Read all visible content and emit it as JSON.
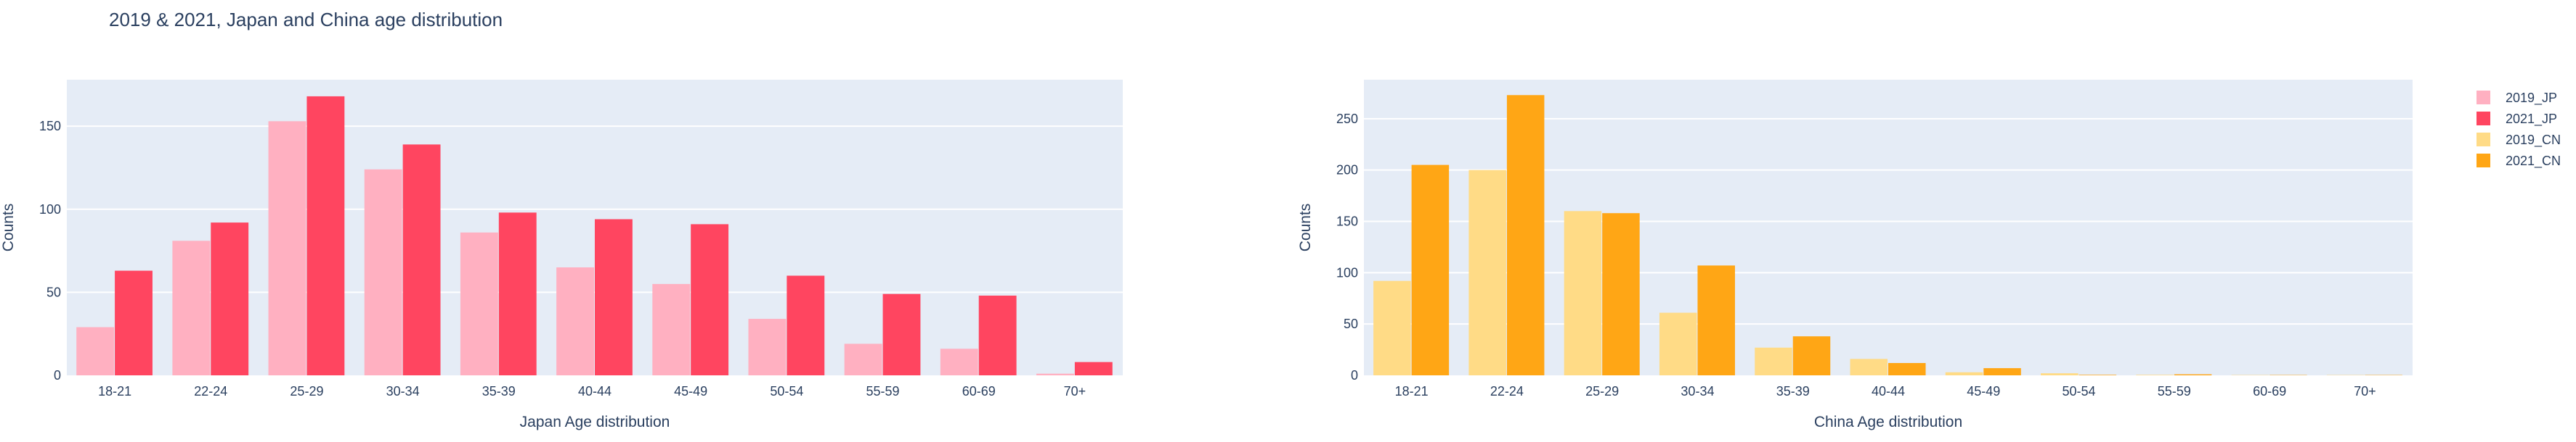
{
  "title": "2019 & 2021, Japan and China age distribution",
  "colors": {
    "2019_JP": "#FFB0C1",
    "2021_JP": "#FF4560",
    "2019_CN": "#FFDB86",
    "2021_CN": "#FFA615",
    "plot_bg": "#E5ECF6",
    "grid": "#FFFFFF",
    "text": "#2a3f5f"
  },
  "legend": {
    "placement": "top-right",
    "items": [
      "2019_JP",
      "2021_JP",
      "2019_CN",
      "2021_CN"
    ]
  },
  "chart_data": [
    {
      "type": "bar",
      "categories": [
        "18-21",
        "22-24",
        "25-29",
        "30-34",
        "35-39",
        "40-44",
        "45-49",
        "50-54",
        "55-59",
        "60-69",
        "70+"
      ],
      "series": [
        {
          "name": "2019_JP",
          "values": [
            29,
            81,
            153,
            124,
            86,
            65,
            55,
            34,
            19,
            16,
            1
          ]
        },
        {
          "name": "2021_JP",
          "values": [
            63,
            92,
            168,
            139,
            98,
            94,
            91,
            60,
            49,
            48,
            8
          ]
        }
      ],
      "xlabel": "Japan Age distribution",
      "ylabel": "Counts",
      "ylim": [
        0,
        178
      ],
      "yticks": [
        0,
        50,
        100,
        150
      ],
      "grid": true
    },
    {
      "type": "bar",
      "categories": [
        "18-21",
        "22-24",
        "25-29",
        "30-34",
        "35-39",
        "40-44",
        "45-49",
        "50-54",
        "55-59",
        "60-69",
        "70+"
      ],
      "series": [
        {
          "name": "2019_CN",
          "values": [
            92,
            200,
            160,
            61,
            27,
            16,
            3,
            2,
            0.5,
            0.3,
            0.3
          ]
        },
        {
          "name": "2021_CN",
          "values": [
            205,
            273,
            158,
            107,
            38,
            12,
            7,
            0.5,
            1,
            0.3,
            0.3
          ]
        }
      ],
      "xlabel": "China Age distribution",
      "ylabel": "Counts",
      "ylim": [
        0,
        288
      ],
      "yticks": [
        0,
        50,
        100,
        150,
        200,
        250
      ],
      "grid": true
    }
  ]
}
